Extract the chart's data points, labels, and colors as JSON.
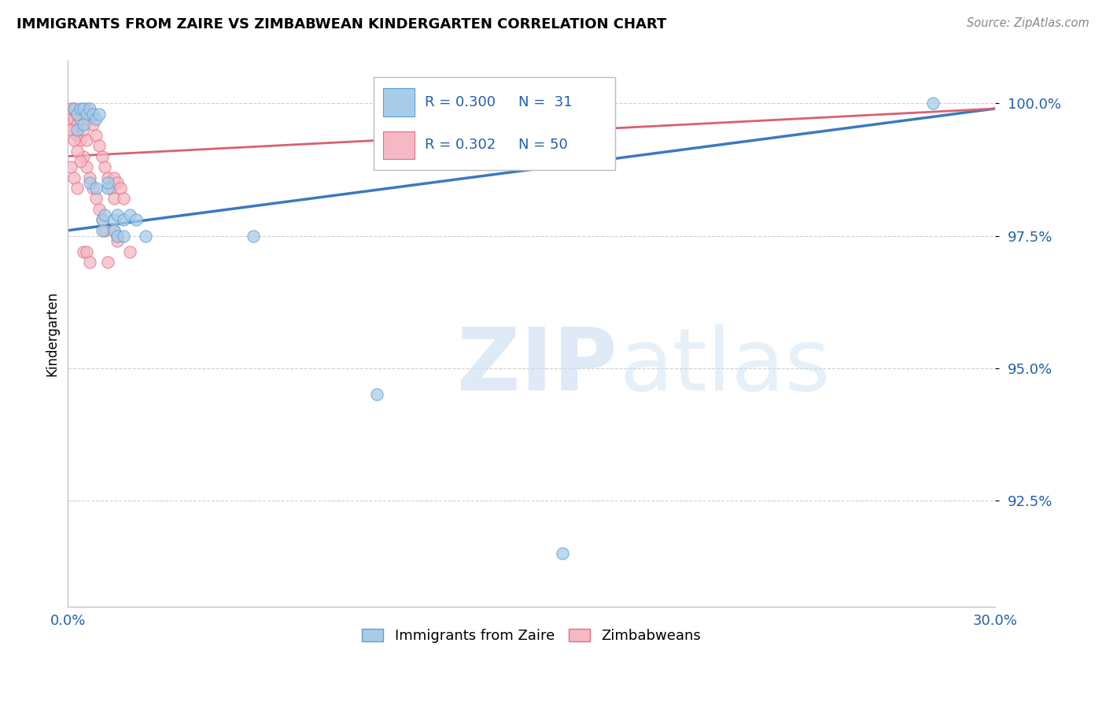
{
  "title": "IMMIGRANTS FROM ZAIRE VS ZIMBABWEAN KINDERGARTEN CORRELATION CHART",
  "source": "Source: ZipAtlas.com",
  "ylabel": "Kindergarten",
  "ytick_vals": [
    0.925,
    0.95,
    0.975,
    1.0
  ],
  "ytick_labels": [
    "92.5%",
    "95.0%",
    "97.5%",
    "100.0%"
  ],
  "xtick_vals": [
    0.0,
    0.05,
    0.1,
    0.15,
    0.2,
    0.25,
    0.3
  ],
  "xtick_labels": [
    "0.0%",
    "",
    "",
    "",
    "",
    "",
    "30.0%"
  ],
  "xlim": [
    0.0,
    0.3
  ],
  "ylim": [
    0.905,
    1.008
  ],
  "blue_label": "Immigrants from Zaire",
  "pink_label": "Zimbabweans",
  "blue_color": "#a8cce8",
  "pink_color": "#f5b8c4",
  "blue_edge_color": "#5a9fd4",
  "pink_edge_color": "#e07080",
  "blue_line_color": "#3a7abf",
  "pink_line_color": "#d96070",
  "text_color": "#2060b0",
  "legend_R_blue": "R = 0.300",
  "legend_N_blue": "N =  31",
  "legend_R_pink": "R = 0.302",
  "legend_N_pink": "N = 50",
  "blue_scatter_x": [
    0.002,
    0.003,
    0.004,
    0.005,
    0.006,
    0.007,
    0.008,
    0.009,
    0.01,
    0.011,
    0.012,
    0.013,
    0.015,
    0.016,
    0.018,
    0.02,
    0.022,
    0.025,
    0.003,
    0.005,
    0.007,
    0.009,
    0.011,
    0.013,
    0.015,
    0.016,
    0.018,
    0.06,
    0.1,
    0.16,
    0.28
  ],
  "blue_scatter_y": [
    0.999,
    0.998,
    0.999,
    0.999,
    0.998,
    0.999,
    0.998,
    0.997,
    0.998,
    0.978,
    0.979,
    0.984,
    0.978,
    0.979,
    0.978,
    0.979,
    0.978,
    0.975,
    0.995,
    0.996,
    0.985,
    0.984,
    0.976,
    0.985,
    0.976,
    0.975,
    0.975,
    0.975,
    0.945,
    0.915,
    1.0
  ],
  "pink_scatter_x": [
    0.001,
    0.001,
    0.002,
    0.002,
    0.002,
    0.003,
    0.003,
    0.003,
    0.004,
    0.004,
    0.005,
    0.005,
    0.005,
    0.006,
    0.006,
    0.006,
    0.007,
    0.007,
    0.008,
    0.008,
    0.009,
    0.009,
    0.01,
    0.01,
    0.011,
    0.011,
    0.012,
    0.012,
    0.013,
    0.014,
    0.015,
    0.015,
    0.016,
    0.016,
    0.017,
    0.018,
    0.001,
    0.002,
    0.003,
    0.004,
    0.001,
    0.002,
    0.003,
    0.005,
    0.006,
    0.007,
    0.013,
    0.015,
    0.016,
    0.02
  ],
  "pink_scatter_y": [
    0.999,
    0.997,
    0.999,
    0.997,
    0.995,
    0.998,
    0.996,
    0.994,
    0.997,
    0.993,
    0.998,
    0.995,
    0.99,
    0.999,
    0.993,
    0.988,
    0.997,
    0.986,
    0.996,
    0.984,
    0.994,
    0.982,
    0.992,
    0.98,
    0.99,
    0.978,
    0.988,
    0.976,
    0.986,
    0.984,
    0.986,
    0.982,
    0.985,
    0.975,
    0.984,
    0.982,
    0.995,
    0.993,
    0.991,
    0.989,
    0.988,
    0.986,
    0.984,
    0.972,
    0.972,
    0.97,
    0.97,
    0.976,
    0.974,
    0.972
  ],
  "blue_line_x": [
    0.0,
    0.3
  ],
  "blue_line_y": [
    0.976,
    0.999
  ],
  "pink_line_x": [
    0.0,
    0.3
  ],
  "pink_line_y": [
    0.99,
    0.999
  ],
  "grid_color": "#d0d0d0",
  "marker_size": 120
}
